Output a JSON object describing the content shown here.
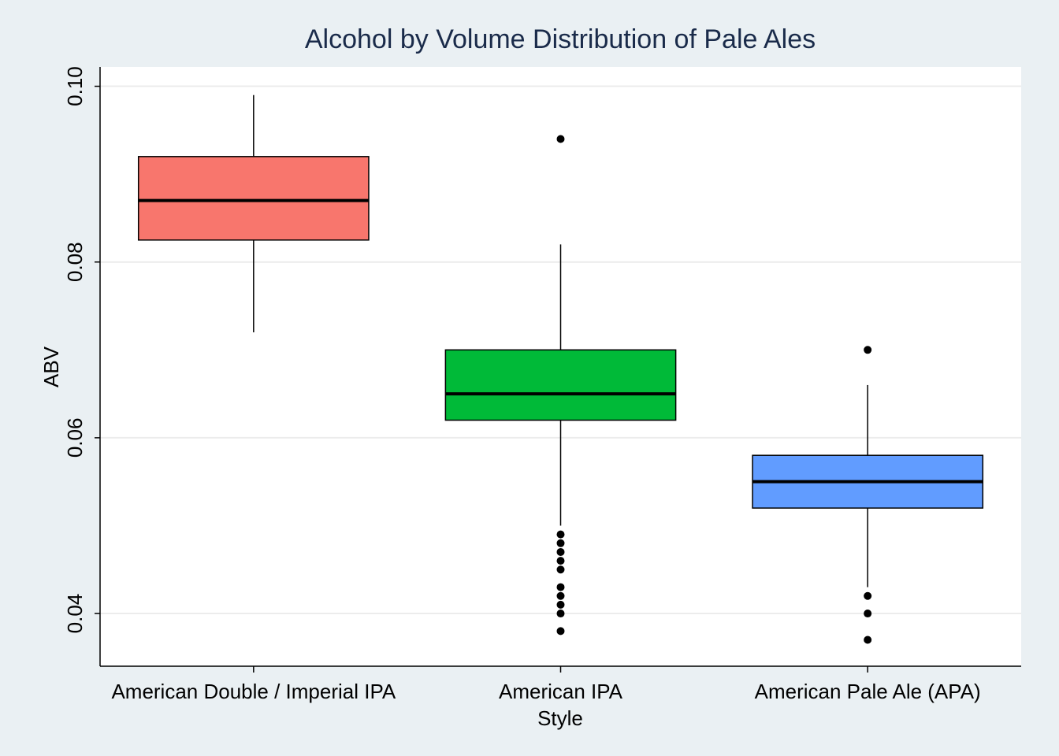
{
  "chart_data": {
    "type": "box",
    "title": "Alcohol by Volume Distribution of Pale Ales",
    "xlabel": "Style",
    "ylabel": "ABV",
    "ylim": [
      0.034,
      0.1022
    ],
    "yticks": [
      "0.04",
      "0.06",
      "0.08",
      "0.10"
    ],
    "ytick_values": [
      0.04,
      0.06,
      0.08,
      0.1
    ],
    "grid": true,
    "categories": [
      "American Double / Imperial IPA",
      "American IPA",
      "American Pale Ale (APA)"
    ],
    "series": [
      {
        "category": "American Double / Imperial IPA",
        "color": "#f8766d",
        "whisker_low": 0.072,
        "q1": 0.0825,
        "median": 0.087,
        "q3": 0.092,
        "whisker_high": 0.099,
        "outliers": []
      },
      {
        "category": "American IPA",
        "color": "#00ba38",
        "whisker_low": 0.05,
        "q1": 0.062,
        "median": 0.065,
        "q3": 0.07,
        "whisker_high": 0.082,
        "outliers": [
          0.094,
          0.049,
          0.048,
          0.047,
          0.046,
          0.045,
          0.043,
          0.042,
          0.041,
          0.04,
          0.038
        ]
      },
      {
        "category": "American Pale Ale (APA)",
        "color": "#619cff",
        "whisker_low": 0.043,
        "q1": 0.052,
        "median": 0.055,
        "q3": 0.058,
        "whisker_high": 0.066,
        "outliers": [
          0.07,
          0.042,
          0.04,
          0.037
        ]
      }
    ]
  }
}
